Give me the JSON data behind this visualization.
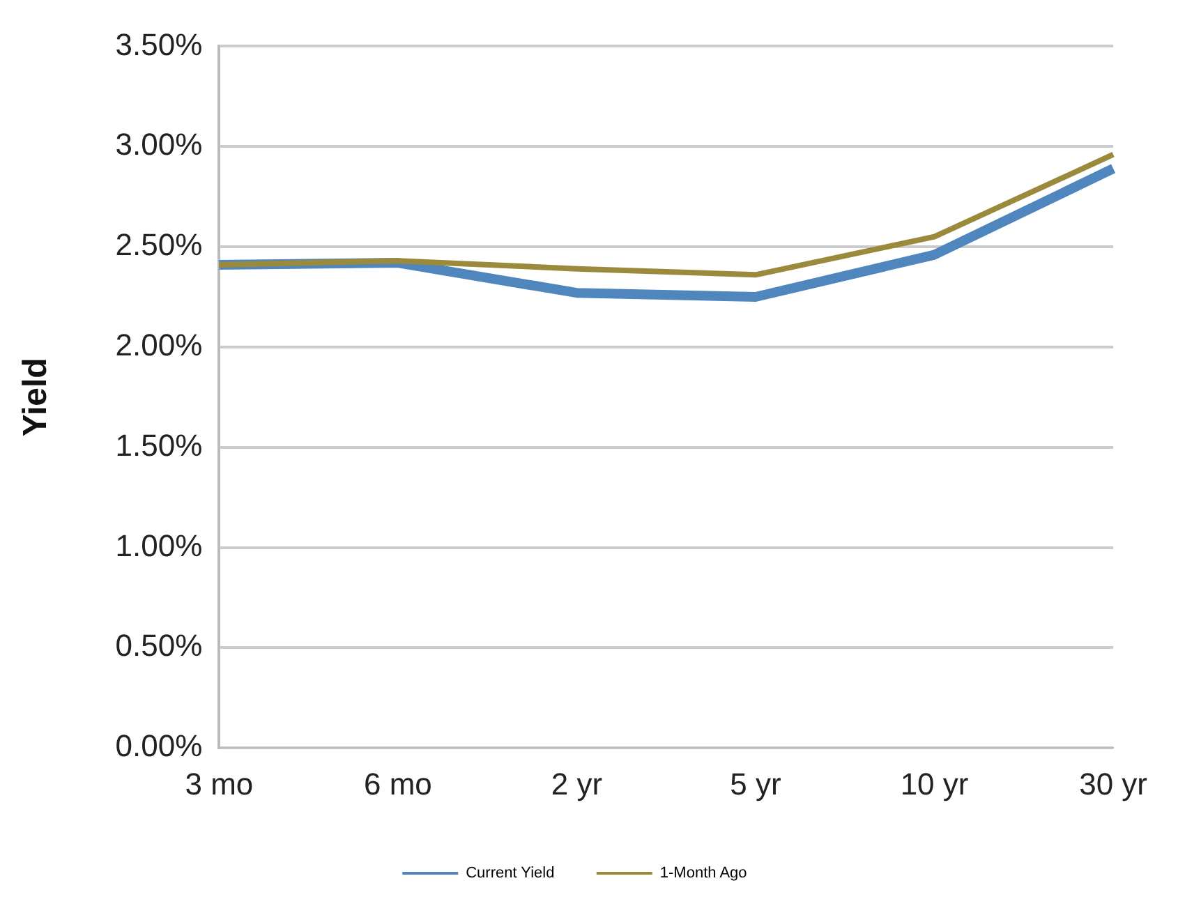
{
  "chart_data": {
    "type": "line",
    "ylabel": "Yield",
    "categories": [
      "3 mo",
      "6 mo",
      "2 yr",
      "5 yr",
      "10 yr",
      "30 yr"
    ],
    "series": [
      {
        "name": "Current Yield",
        "color": "#4f86bd",
        "values": [
          2.41,
          2.42,
          2.27,
          2.25,
          2.46,
          2.89
        ]
      },
      {
        "name": "1-Month Ago",
        "color": "#9c8a3c",
        "values": [
          2.41,
          2.43,
          2.39,
          2.36,
          2.55,
          2.96
        ]
      }
    ],
    "ylim": [
      0,
      3.5
    ],
    "yticks": [
      {
        "value": 0,
        "label": "0.00%"
      },
      {
        "value": 0.5,
        "label": "0.50%"
      },
      {
        "value": 1,
        "label": "1.00%"
      },
      {
        "value": 1.5,
        "label": "1.50%"
      },
      {
        "value": 2,
        "label": "2.00%"
      },
      {
        "value": 2.5,
        "label": "2.50%"
      },
      {
        "value": 3,
        "label": "3.00%"
      },
      {
        "value": 3.5,
        "label": "3.50%"
      }
    ],
    "grid": "y",
    "legend": "bottom",
    "marker": "none",
    "line_style": "solid"
  }
}
